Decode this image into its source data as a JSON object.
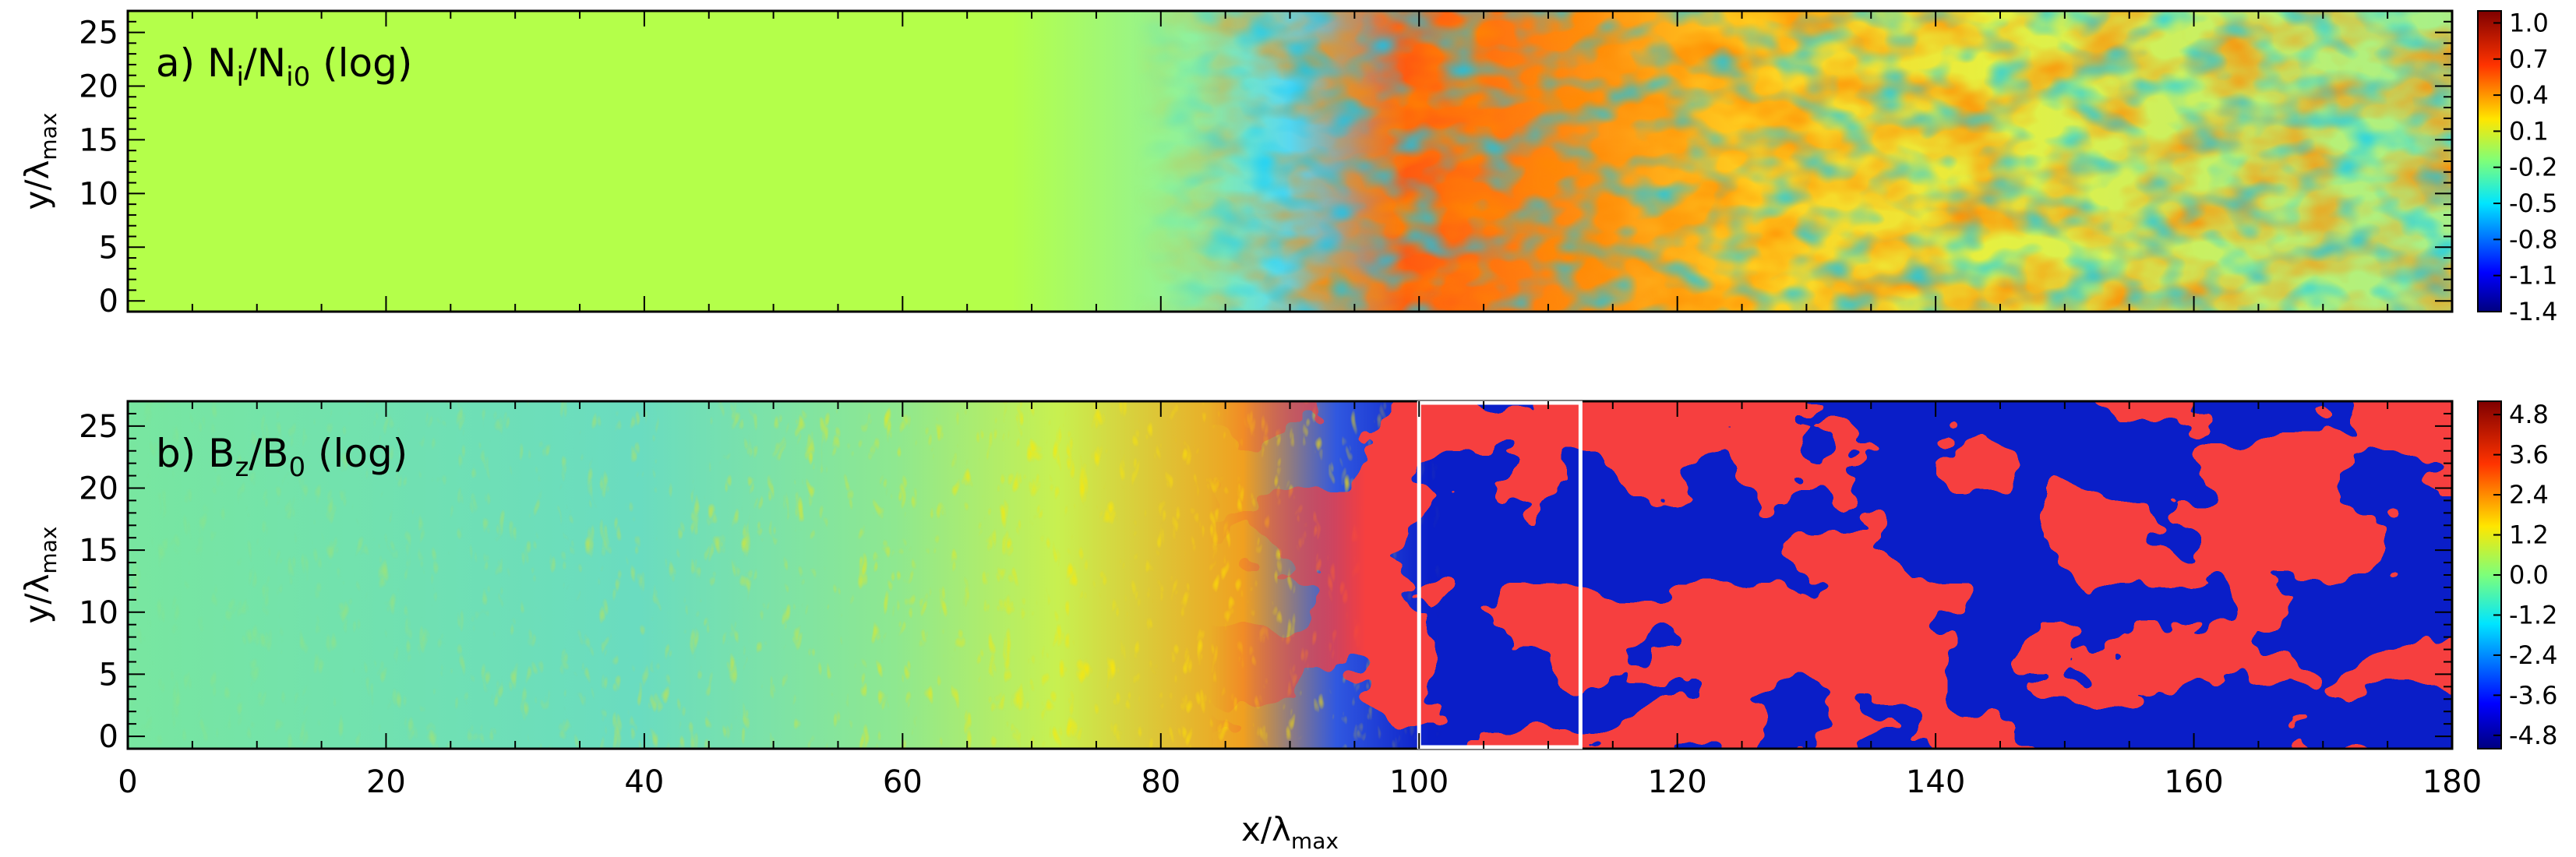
{
  "chart_data": [
    {
      "type": "heatmap",
      "panel_label": "a)",
      "quantity_main": "N",
      "quantity_sub1": "i",
      "quantity_sep": "/N",
      "quantity_sub2": "i0",
      "quantity_suffix": " (log)",
      "xlim": [
        0,
        180
      ],
      "ylim": [
        -1,
        27
      ],
      "yticks": [
        0,
        5,
        10,
        15,
        20,
        25
      ],
      "ylabel_main": "y/λ",
      "ylabel_sub": "max",
      "colorbar": {
        "range": [
          -1.4,
          1.1
        ],
        "ticks": [
          "1.0",
          "0.7",
          "0.4",
          "0.1",
          "-0.2",
          "-0.5",
          "-0.8",
          "-1.1",
          "-1.4"
        ]
      }
    },
    {
      "type": "heatmap",
      "panel_label": "b)",
      "quantity_main": "B",
      "quantity_sub1": "z",
      "quantity_sep": "/B",
      "quantity_sub2": "0",
      "quantity_suffix": " (log)",
      "xlim": [
        0,
        180
      ],
      "ylim": [
        -1,
        27
      ],
      "yticks": [
        0,
        5,
        10,
        15,
        20,
        25
      ],
      "ylabel_main": "y/λ",
      "ylabel_sub": "max",
      "xticks": [
        0,
        20,
        40,
        60,
        80,
        100,
        120,
        140,
        160,
        180
      ],
      "xlabel_main": "x/λ",
      "xlabel_sub": "max",
      "highlight_box": {
        "x": [
          100,
          112.5
        ],
        "y": [
          -1,
          27
        ]
      },
      "colorbar": {
        "range": [
          -5.2,
          5.2
        ],
        "ticks": [
          "4.8",
          "3.6",
          "2.4",
          "1.2",
          "0.0",
          "-1.2",
          "-2.4",
          "-3.6",
          "-4.8"
        ]
      }
    }
  ]
}
